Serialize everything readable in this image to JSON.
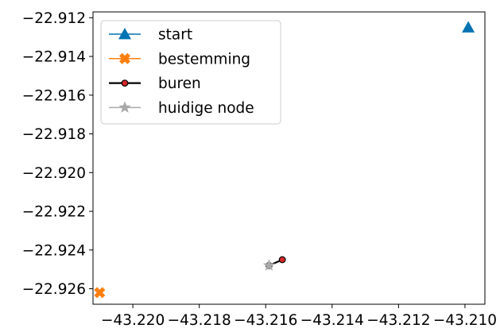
{
  "chart_data": {
    "type": "scatter",
    "title": "",
    "xlabel": "",
    "ylabel": "",
    "xlim": [
      -43.2212,
      -43.2094
    ],
    "ylim": [
      -22.9268,
      -22.9117
    ],
    "x_ticks": [
      -43.22,
      -43.218,
      -43.216,
      -43.214,
      -43.212,
      -43.21
    ],
    "x_tick_labels": [
      "−43.220",
      "−43.218",
      "−43.216",
      "−43.214",
      "−43.212",
      "−43.210"
    ],
    "y_ticks": [
      -22.926,
      -22.924,
      -22.922,
      -22.92,
      -22.918,
      -22.916,
      -22.914,
      -22.912
    ],
    "y_tick_labels": [
      "−22.926",
      "−22.924",
      "−22.922",
      "−22.920",
      "−22.918",
      "−22.916",
      "−22.914",
      "−22.912"
    ],
    "grid": false,
    "legend_position": "upper-left",
    "series": [
      {
        "name": "start",
        "marker": "triangle",
        "color": "#0173b2",
        "line": false,
        "points": [
          {
            "x": -43.2099,
            "y": -22.9125
          }
        ]
      },
      {
        "name": "bestemming",
        "marker": "x-filled",
        "color": "#ff7f0e",
        "line": false,
        "points": [
          {
            "x": -43.221,
            "y": -22.9262
          }
        ]
      },
      {
        "name": "buren",
        "marker": "circle",
        "color": "#000000",
        "marker_fill": "#d62728",
        "line": true,
        "points": [
          {
            "x": -43.2159,
            "y": -22.9248
          },
          {
            "x": -43.2155,
            "y": -22.9245
          }
        ]
      },
      {
        "name": "huidige node",
        "marker": "star",
        "color": "#a9a9a9",
        "line": false,
        "points": [
          {
            "x": -43.2159,
            "y": -22.9248
          }
        ]
      }
    ]
  }
}
